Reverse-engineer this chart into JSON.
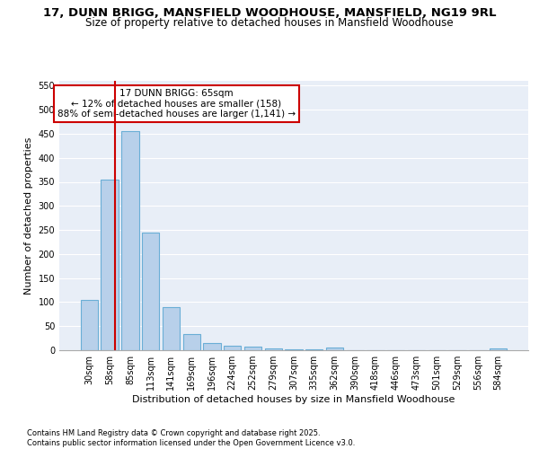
{
  "title1": "17, DUNN BRIGG, MANSFIELD WOODHOUSE, MANSFIELD, NG19 9RL",
  "title2": "Size of property relative to detached houses in Mansfield Woodhouse",
  "xlabel": "Distribution of detached houses by size in Mansfield Woodhouse",
  "ylabel": "Number of detached properties",
  "categories": [
    "30sqm",
    "58sqm",
    "85sqm",
    "113sqm",
    "141sqm",
    "169sqm",
    "196sqm",
    "224sqm",
    "252sqm",
    "279sqm",
    "307sqm",
    "335sqm",
    "362sqm",
    "390sqm",
    "418sqm",
    "446sqm",
    "473sqm",
    "501sqm",
    "529sqm",
    "556sqm",
    "584sqm"
  ],
  "values": [
    105,
    355,
    455,
    245,
    90,
    33,
    15,
    10,
    7,
    3,
    2,
    1,
    5,
    0,
    0,
    0,
    0,
    0,
    0,
    0,
    4
  ],
  "bar_color": "#b8d0ea",
  "bar_edge_color": "#6aaed6",
  "vline_color": "#cc0000",
  "annotation_text": "17 DUNN BRIGG: 65sqm\n← 12% of detached houses are smaller (158)\n88% of semi-detached houses are larger (1,141) →",
  "annotation_box_color": "#ffffff",
  "annotation_box_edge_color": "#cc0000",
  "ylim": [
    0,
    560
  ],
  "yticks": [
    0,
    50,
    100,
    150,
    200,
    250,
    300,
    350,
    400,
    450,
    500,
    550
  ],
  "background_color": "#e8eef7",
  "grid_color": "#ffffff",
  "footnote": "Contains HM Land Registry data © Crown copyright and database right 2025.\nContains public sector information licensed under the Open Government Licence v3.0.",
  "title1_fontsize": 9.5,
  "title2_fontsize": 8.5,
  "xlabel_fontsize": 8,
  "ylabel_fontsize": 8,
  "tick_fontsize": 7,
  "annotation_fontsize": 7.5,
  "footnote_fontsize": 6
}
